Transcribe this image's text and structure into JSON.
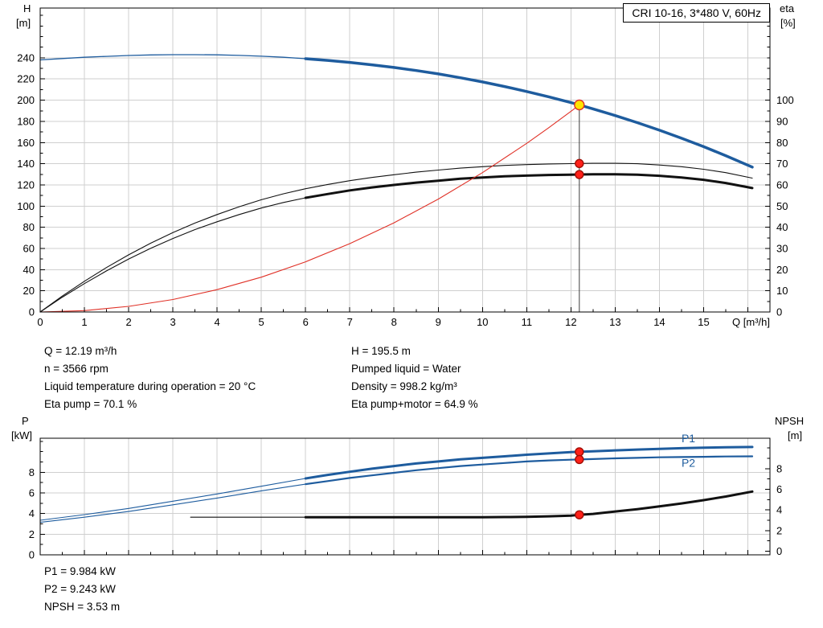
{
  "title_box": "CRI 10-16, 3*480 V, 60Hz",
  "info_top": {
    "left": [
      "Q = 12.19 m³/h",
      "n = 3566 rpm",
      "Liquid temperature during operation = 20 °C",
      "Eta pump = 70.1 %"
    ],
    "right": [
      "H = 195.5 m",
      "Pumped liquid = Water",
      "Density = 998.2 kg/m³",
      "Eta pump+motor = 64.9 %"
    ]
  },
  "info_bottom": [
    "P1 = 9.984 kW",
    "P2 = 9.243 kW",
    "NPSH = 3.53 m"
  ],
  "chart_data": [
    {
      "type": "line",
      "title": "CRI 10-16, 3*480 V, 60Hz",
      "x_axis": {
        "label": "Q [m³/h]",
        "min": 0,
        "max": 16.5,
        "minor_step": 0.5,
        "tick_labels": [
          0,
          1,
          2,
          3,
          4,
          5,
          6,
          7,
          8,
          9,
          10,
          11,
          12,
          13,
          14,
          15
        ]
      },
      "y_left": {
        "label_lines": [
          "H",
          "[m]"
        ],
        "min": 0,
        "max": 287,
        "minor_step": 10,
        "major_ticks": [
          0,
          20,
          40,
          60,
          80,
          100,
          120,
          140,
          160,
          180,
          200,
          220,
          240
        ]
      },
      "y_right": {
        "label_lines": [
          "eta",
          "[%]"
        ],
        "min": 0,
        "max": 143.5,
        "minor_step": 5,
        "major_ticks": [
          0,
          10,
          20,
          30,
          40,
          50,
          60,
          70,
          80,
          90,
          100
        ]
      },
      "series": [
        {
          "name": "head-curve-extension",
          "axis": "left",
          "color": "#1e5c9e",
          "width": 1.3,
          "points": [
            [
              0,
              238
            ],
            [
              0.5,
              239.3
            ],
            [
              1,
              240.5
            ],
            [
              1.5,
              241.4
            ],
            [
              2,
              242.2
            ],
            [
              2.5,
              242.7
            ],
            [
              3,
              243.0
            ],
            [
              3.5,
              243.0
            ],
            [
              4,
              242.8
            ],
            [
              4.5,
              242.3
            ],
            [
              5,
              241.5
            ],
            [
              5.5,
              240.5
            ],
            [
              6,
              239.2
            ]
          ]
        },
        {
          "name": "head-curve",
          "axis": "left",
          "color": "#1e5c9e",
          "width": 3.5,
          "points": [
            [
              6,
              239.2
            ],
            [
              6.5,
              237.6
            ],
            [
              7,
              235.7
            ],
            [
              7.5,
              233.4
            ],
            [
              8,
              230.9
            ],
            [
              8.5,
              228.0
            ],
            [
              9,
              224.8
            ],
            [
              9.5,
              221.2
            ],
            [
              10,
              217.2
            ],
            [
              10.5,
              212.9
            ],
            [
              11,
              208.2
            ],
            [
              11.5,
              203.2
            ],
            [
              12,
              197.7
            ],
            [
              12.19,
              195.5
            ],
            [
              12.5,
              191.8
            ],
            [
              13,
              185.5
            ],
            [
              13.5,
              178.8
            ],
            [
              14,
              171.7
            ],
            [
              14.5,
              164.1
            ],
            [
              15,
              156.1
            ],
            [
              15.5,
              147.6
            ],
            [
              16.1,
              136.8
            ]
          ]
        },
        {
          "name": "eta-pump-curve",
          "axis": "right",
          "color": "#111111",
          "width": 1.1,
          "points": [
            [
              0,
              0
            ],
            [
              0.5,
              7.5
            ],
            [
              1,
              14.5
            ],
            [
              1.5,
              21
            ],
            [
              2,
              27
            ],
            [
              2.5,
              32.5
            ],
            [
              3,
              37.5
            ],
            [
              3.5,
              42
            ],
            [
              4,
              46
            ],
            [
              4.5,
              49.7
            ],
            [
              5,
              53
            ],
            [
              5.5,
              55.8
            ],
            [
              6,
              58.2
            ],
            [
              6.5,
              60.2
            ],
            [
              7,
              62
            ],
            [
              7.5,
              63.5
            ],
            [
              8,
              64.8
            ],
            [
              8.5,
              66
            ],
            [
              9,
              67
            ],
            [
              9.5,
              67.9
            ],
            [
              10,
              68.6
            ],
            [
              10.5,
              69.2
            ],
            [
              11,
              69.6
            ],
            [
              11.5,
              69.9
            ],
            [
              12,
              70.05
            ],
            [
              12.19,
              70.1
            ],
            [
              12.5,
              70.2
            ],
            [
              13,
              70.2
            ],
            [
              13.5,
              70.0
            ],
            [
              14,
              69.4
            ],
            [
              14.5,
              68.6
            ],
            [
              15,
              67.4
            ],
            [
              15.5,
              65.8
            ],
            [
              16.1,
              63.2
            ]
          ]
        },
        {
          "name": "eta-pump-motor-extension",
          "axis": "right",
          "color": "#111111",
          "width": 1.1,
          "points": [
            [
              0,
              0
            ],
            [
              0.5,
              7
            ],
            [
              1,
              13.4
            ],
            [
              1.5,
              19.4
            ],
            [
              2,
              25
            ],
            [
              2.5,
              30.1
            ],
            [
              3,
              34.7
            ],
            [
              3.5,
              38.9
            ],
            [
              4,
              42.6
            ],
            [
              4.5,
              46
            ],
            [
              5,
              49.1
            ],
            [
              5.5,
              51.7
            ],
            [
              6,
              53.9
            ]
          ]
        },
        {
          "name": "eta-pump-motor-curve",
          "axis": "right",
          "color": "#111111",
          "width": 3,
          "points": [
            [
              6,
              53.9
            ],
            [
              6.5,
              55.7
            ],
            [
              7,
              57.4
            ],
            [
              7.5,
              58.8
            ],
            [
              8,
              60
            ],
            [
              8.5,
              61.1
            ],
            [
              9,
              62
            ],
            [
              9.5,
              62.9
            ],
            [
              10,
              63.5
            ],
            [
              10.5,
              64.1
            ],
            [
              11,
              64.4
            ],
            [
              11.5,
              64.7
            ],
            [
              12,
              64.85
            ],
            [
              12.19,
              64.9
            ],
            [
              12.5,
              65
            ],
            [
              13,
              65
            ],
            [
              13.5,
              64.8
            ],
            [
              14,
              64.3
            ],
            [
              14.5,
              63.5
            ],
            [
              15,
              62.4
            ],
            [
              15.5,
              60.9
            ],
            [
              16.1,
              58.5
            ]
          ]
        },
        {
          "name": "system-curve",
          "axis": "left",
          "color": "#e03127",
          "width": 1.1,
          "points": [
            [
              0,
              0
            ],
            [
              1,
              1.3
            ],
            [
              2,
              5.3
            ],
            [
              3,
              11.8
            ],
            [
              4,
              21.1
            ],
            [
              5,
              32.9
            ],
            [
              6,
              47.4
            ],
            [
              7,
              64.5
            ],
            [
              8,
              84.2
            ],
            [
              9,
              106.6
            ],
            [
              10,
              131.6
            ],
            [
              11,
              159.2
            ],
            [
              11.5,
              174
            ],
            [
              12,
              189.5
            ],
            [
              12.19,
              195.5
            ]
          ]
        }
      ],
      "duty_line": {
        "x": 12.19,
        "y_top": 195.5
      },
      "markers": [
        {
          "name": "duty-point-eta-pump",
          "x": 12.19,
          "y": 70.1,
          "axis": "right",
          "r": 5,
          "fill": "#ff2019",
          "stroke": "#a00d05"
        },
        {
          "name": "duty-point-eta-pump-motor",
          "x": 12.19,
          "y": 64.9,
          "axis": "right",
          "r": 5,
          "fill": "#ff2019",
          "stroke": "#a00d05"
        },
        {
          "name": "duty-point-head",
          "x": 12.19,
          "y": 195.5,
          "axis": "left",
          "r": 6,
          "fill": "#ffe400",
          "stroke": "#e03127"
        }
      ],
      "series_labels": []
    },
    {
      "type": "line",
      "title": "",
      "x_axis": {
        "label": "",
        "min": 0,
        "max": 16.5,
        "minor_step": 0.5,
        "tick_labels": []
      },
      "y_left": {
        "label_lines": [
          "P",
          "[kW]"
        ],
        "min": 0,
        "max": 11.3,
        "minor_step": 1,
        "major_ticks": [
          0,
          2,
          4,
          6,
          8
        ]
      },
      "y_right": {
        "label_lines": [
          "NPSH",
          "[m]"
        ],
        "min": -0.35,
        "max": 10.95,
        "minor_step": 1,
        "major_ticks": [
          0,
          2,
          4,
          6,
          8
        ]
      },
      "series": [
        {
          "name": "p1-curve-extension",
          "axis": "left",
          "color": "#1e5c9e",
          "width": 1.1,
          "points": [
            [
              0,
              3.35
            ],
            [
              1,
              3.9
            ],
            [
              2,
              4.5
            ],
            [
              3,
              5.2
            ],
            [
              4,
              5.9
            ],
            [
              5,
              6.65
            ],
            [
              6,
              7.4
            ]
          ]
        },
        {
          "name": "p1-curve",
          "axis": "left",
          "color": "#1e5c9e",
          "width": 3,
          "label": "P1",
          "points": [
            [
              6,
              7.4
            ],
            [
              6.5,
              7.75
            ],
            [
              7,
              8.05
            ],
            [
              7.5,
              8.35
            ],
            [
              8,
              8.6
            ],
            [
              8.5,
              8.85
            ],
            [
              9,
              9.05
            ],
            [
              9.5,
              9.25
            ],
            [
              10,
              9.4
            ],
            [
              10.5,
              9.55
            ],
            [
              11,
              9.7
            ],
            [
              11.5,
              9.83
            ],
            [
              12,
              9.95
            ],
            [
              12.19,
              9.98
            ],
            [
              12.5,
              10.03
            ],
            [
              13,
              10.12
            ],
            [
              13.5,
              10.2
            ],
            [
              14,
              10.27
            ],
            [
              14.5,
              10.33
            ],
            [
              15,
              10.38
            ],
            [
              15.5,
              10.42
            ],
            [
              16.1,
              10.45
            ]
          ]
        },
        {
          "name": "p2-curve-extension",
          "axis": "left",
          "color": "#1e5c9e",
          "width": 1.1,
          "points": [
            [
              0,
              3.15
            ],
            [
              1,
              3.65
            ],
            [
              2,
              4.2
            ],
            [
              3,
              4.85
            ],
            [
              4,
              5.5
            ],
            [
              5,
              6.2
            ],
            [
              6,
              6.85
            ]
          ]
        },
        {
          "name": "p2-curve",
          "axis": "left",
          "color": "#1e5c9e",
          "width": 2.2,
          "label": "P2",
          "points": [
            [
              6,
              6.85
            ],
            [
              6.5,
              7.15
            ],
            [
              7,
              7.45
            ],
            [
              7.5,
              7.7
            ],
            [
              8,
              7.95
            ],
            [
              8.5,
              8.2
            ],
            [
              9,
              8.4
            ],
            [
              9.5,
              8.6
            ],
            [
              10,
              8.75
            ],
            [
              10.5,
              8.9
            ],
            [
              11,
              9.05
            ],
            [
              11.5,
              9.15
            ],
            [
              12,
              9.22
            ],
            [
              12.19,
              9.24
            ],
            [
              12.5,
              9.28
            ],
            [
              13,
              9.35
            ],
            [
              13.5,
              9.4
            ],
            [
              14,
              9.45
            ],
            [
              14.5,
              9.48
            ],
            [
              15,
              9.5
            ],
            [
              15.5,
              9.53
            ],
            [
              16.1,
              9.55
            ]
          ]
        },
        {
          "name": "npsh-curve-extension",
          "axis": "right",
          "color": "#111111",
          "width": 1.1,
          "points": [
            [
              3.4,
              3.3
            ],
            [
              6,
              3.3
            ]
          ]
        },
        {
          "name": "npsh-curve",
          "axis": "right",
          "color": "#111111",
          "width": 3,
          "points": [
            [
              6,
              3.3
            ],
            [
              9,
              3.3
            ],
            [
              10,
              3.3
            ],
            [
              10.5,
              3.31
            ],
            [
              11,
              3.33
            ],
            [
              11.5,
              3.38
            ],
            [
              12,
              3.45
            ],
            [
              12.19,
              3.53
            ],
            [
              12.5,
              3.62
            ],
            [
              13,
              3.85
            ],
            [
              13.5,
              4.08
            ],
            [
              14,
              4.35
            ],
            [
              14.5,
              4.63
            ],
            [
              15,
              4.95
            ],
            [
              15.5,
              5.3
            ],
            [
              16.1,
              5.78
            ]
          ]
        }
      ],
      "markers": [
        {
          "name": "duty-point-p1",
          "x": 12.19,
          "y": 9.98,
          "axis": "left",
          "r": 5,
          "fill": "#ff2019",
          "stroke": "#a00d05"
        },
        {
          "name": "duty-point-p2",
          "x": 12.19,
          "y": 9.24,
          "axis": "left",
          "r": 5,
          "fill": "#ff2019",
          "stroke": "#a00d05"
        },
        {
          "name": "duty-point-npsh",
          "x": 12.19,
          "y": 3.53,
          "axis": "right",
          "r": 5,
          "fill": "#ff2019",
          "stroke": "#a00d05"
        }
      ],
      "series_labels": [
        {
          "text": "P1",
          "x": 14.5,
          "y": 10.9,
          "color": "#1e5c9e"
        },
        {
          "text": "P2",
          "x": 14.5,
          "y": 8.55,
          "color": "#1e5c9e"
        }
      ]
    }
  ]
}
